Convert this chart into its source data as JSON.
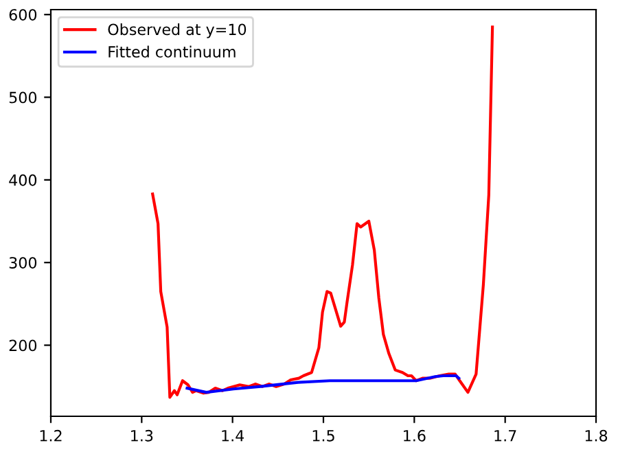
{
  "chart_data": {
    "type": "line",
    "series": [
      {
        "name": "Observed at y=10",
        "color": "#ff0000",
        "x": [
          1.312,
          1.318,
          1.321,
          1.328,
          1.331,
          1.336,
          1.339,
          1.345,
          1.351,
          1.356,
          1.36,
          1.368,
          1.374,
          1.381,
          1.389,
          1.395,
          1.408,
          1.418,
          1.425,
          1.433,
          1.44,
          1.448,
          1.457,
          1.464,
          1.473,
          1.478,
          1.487,
          1.495,
          1.499,
          1.504,
          1.508,
          1.519,
          1.523,
          1.526,
          1.532,
          1.537,
          1.541,
          1.55,
          1.556,
          1.561,
          1.566,
          1.572,
          1.579,
          1.587,
          1.593,
          1.597,
          1.602,
          1.609,
          1.617,
          1.628,
          1.638,
          1.645,
          1.65,
          1.659,
          1.668,
          1.676,
          1.682,
          1.686
        ],
        "values": [
          383,
          347,
          265,
          222,
          137,
          145,
          140,
          157,
          152,
          143,
          145,
          142,
          143,
          148,
          145,
          148,
          152,
          150,
          153,
          150,
          153,
          150,
          153,
          158,
          160,
          163,
          167,
          197,
          240,
          265,
          263,
          223,
          228,
          252,
          297,
          347,
          343,
          350,
          315,
          257,
          213,
          190,
          170,
          167,
          163,
          163,
          157,
          160,
          160,
          163,
          165,
          165,
          157,
          143,
          165,
          273,
          382,
          585
        ]
      },
      {
        "name": "Fitted continuum",
        "color": "#0000ff",
        "x": [
          1.35,
          1.371,
          1.401,
          1.431,
          1.472,
          1.507,
          1.602,
          1.623,
          1.632,
          1.646,
          1.649
        ],
        "values": [
          148,
          143,
          147,
          150,
          155,
          157,
          157,
          162,
          163,
          163,
          160
        ]
      }
    ],
    "xlim": [
      1.2,
      1.8
    ],
    "xticks": [
      1.2,
      1.3,
      1.4,
      1.5,
      1.6,
      1.7,
      1.8
    ],
    "ylim": [
      114,
      606
    ],
    "yticks": [
      200,
      300,
      400,
      500,
      600
    ],
    "legend": "top left",
    "grid": false,
    "marker": "none",
    "line_style": "solid"
  }
}
